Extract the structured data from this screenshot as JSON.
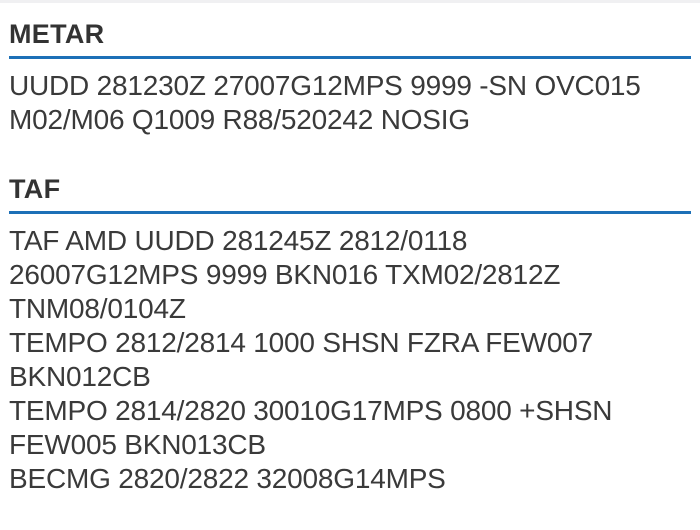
{
  "colors": {
    "accent": "#1d70b7",
    "heading": "#333333",
    "text": "#3a3a3a",
    "top_divider": "#f0f0f2"
  },
  "metar": {
    "heading": "METAR",
    "lines": [
      "UUDD 281230Z 27007G12MPS 9999 -SN OVC015",
      "M02/M06 Q1009 R88/520242 NOSIG"
    ]
  },
  "taf": {
    "heading": "TAF",
    "lines": [
      "TAF AMD UUDD 281245Z 2812/0118",
      "26007G12MPS 9999 BKN016 TXM02/2812Z",
      "TNM08/0104Z",
      "TEMPO 2812/2814 1000 SHSN FZRA FEW007",
      "BKN012CB",
      "TEMPO 2814/2820 30010G17MPS 0800 +SHSN",
      "FEW005 BKN013CB",
      "BECMG 2820/2822 32008G14MPS"
    ]
  }
}
